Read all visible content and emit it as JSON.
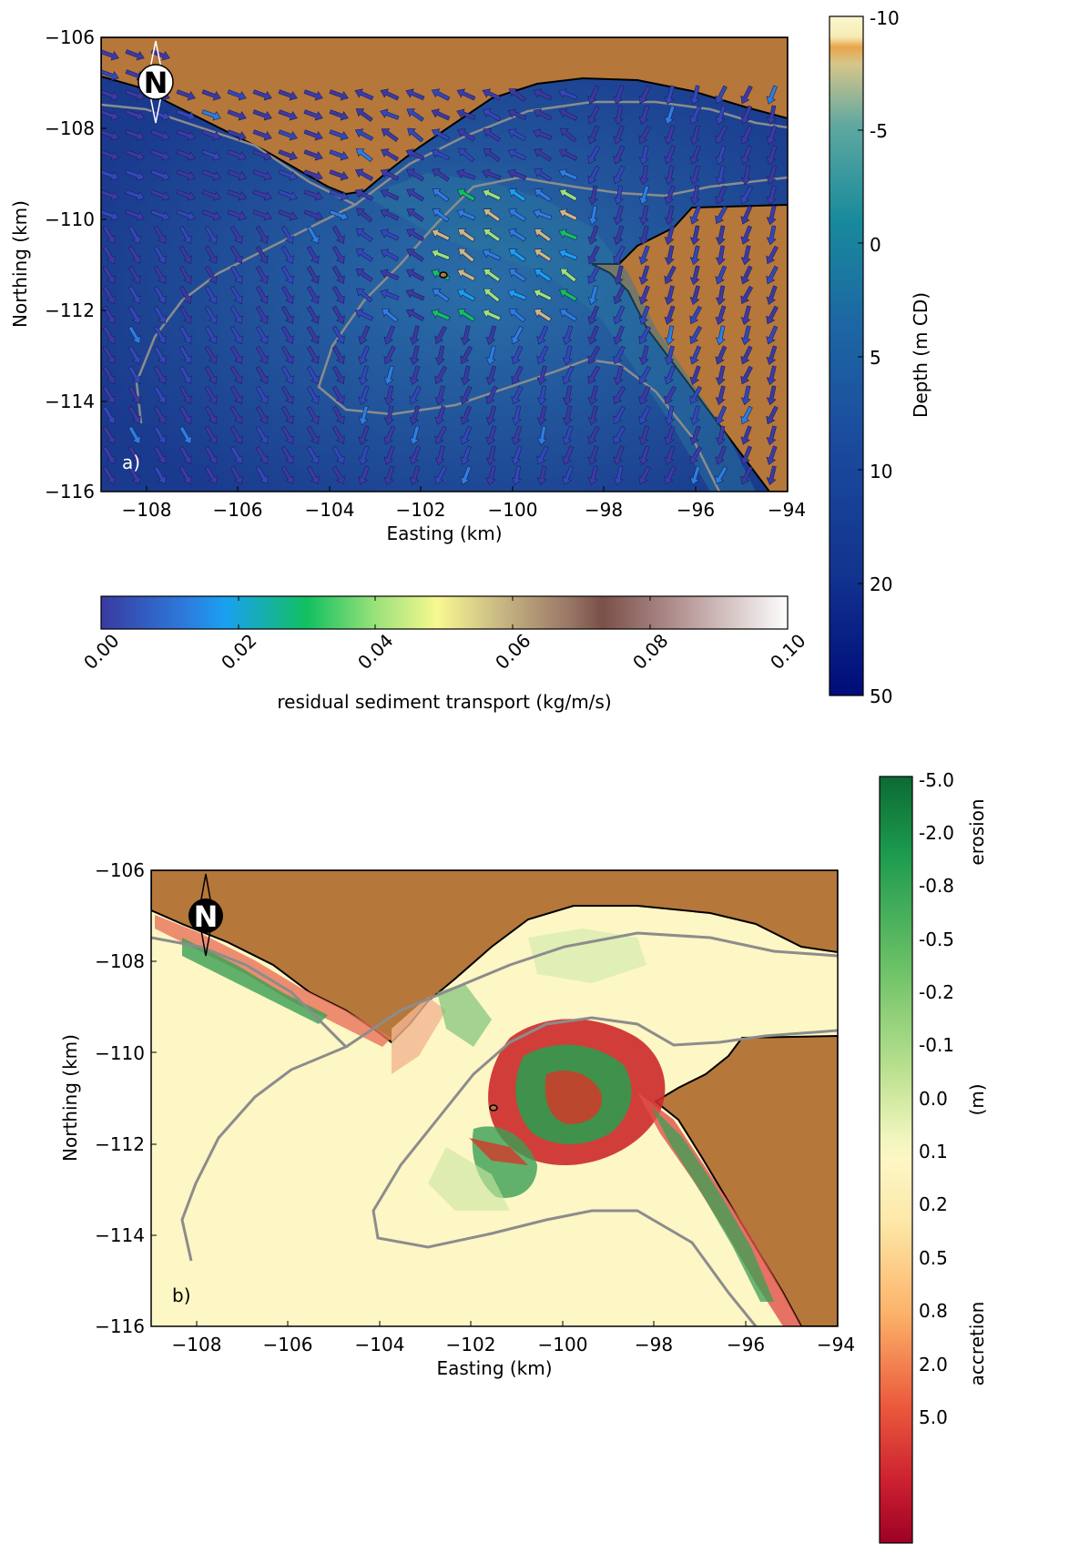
{
  "panel_a": {
    "label": "a)",
    "xlabel": "Easting (km)",
    "ylabel": "Northing (km)",
    "xlim": [
      -109,
      -94
    ],
    "ylim": [
      -116,
      -106
    ],
    "xticks": [
      "−108",
      "−106",
      "−104",
      "−102",
      "−100",
      "−98",
      "−96",
      "−94"
    ],
    "yticks": [
      "−106",
      "−108",
      "−110",
      "−112",
      "−114",
      "−116"
    ],
    "north_label": "N",
    "depth_colorbar": {
      "label": "Depth (m CD)",
      "ticks": [
        "-10",
        "-5",
        "0",
        "5",
        "10",
        "20",
        "50"
      ]
    },
    "transport_colorbar": {
      "label": "residual sediment transport (kg/m/s)",
      "ticks": [
        "0.00",
        "0.02",
        "0.04",
        "0.06",
        "0.08",
        "0.10"
      ]
    }
  },
  "panel_b": {
    "label": "b)",
    "xlabel": "Easting (km)",
    "ylabel": "Northing (km)",
    "xticks": [
      "−108",
      "−106",
      "−104",
      "−102",
      "−100",
      "−98",
      "−96",
      "−94"
    ],
    "yticks": [
      "−106",
      "−108",
      "−110",
      "−112",
      "−114",
      "−116"
    ],
    "north_label": "N",
    "colorbar": {
      "ticks": [
        "-5.0",
        "-2.0",
        "-0.8",
        "-0.5",
        "-0.2",
        "-0.1",
        "0.0",
        "0.1",
        "0.2",
        "0.5",
        "0.8",
        "2.0",
        "5.0"
      ],
      "unit": "(m)",
      "top_label": "erosion",
      "bottom_label": "accretion"
    }
  },
  "colors": {
    "land": "#b5773a",
    "deep_water": "#1c3a8c",
    "shallow_water": "#2d7f9a",
    "background_b": "#fdf6c5",
    "contour": "#8c8c8c",
    "erosion": "#0f7a3a",
    "accretion": "#c8102e"
  }
}
